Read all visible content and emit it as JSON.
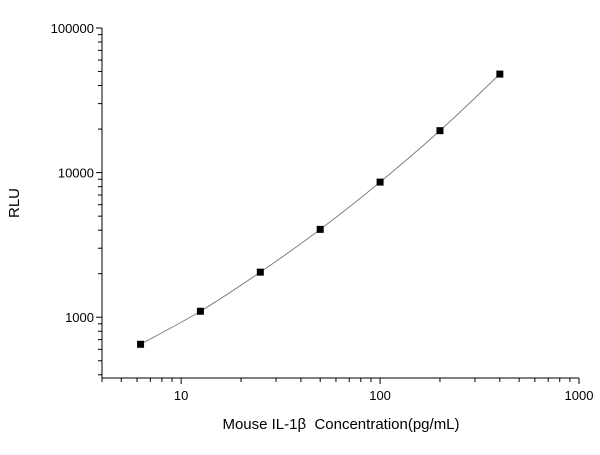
{
  "chart_data": {
    "type": "scatter",
    "title": "",
    "xlabel": "Mouse IL-1β  Concentration(pg/mL)",
    "ylabel": "RLU",
    "x_scale": "log",
    "y_scale": "log",
    "xlim": [
      4,
      1000
    ],
    "ylim": [
      380,
      100000
    ],
    "x_ticks": [
      10,
      100,
      1000
    ],
    "x_tick_labels": [
      "10",
      "100",
      "1000"
    ],
    "y_ticks": [
      1000,
      10000,
      100000
    ],
    "y_tick_labels": [
      "1000",
      "10000",
      "100000"
    ],
    "grid": false,
    "fit_curve": true,
    "series": [
      {
        "x": [
          6.25,
          12.5,
          25,
          50,
          100,
          200,
          400
        ],
        "y": [
          650,
          1100,
          2050,
          4050,
          8600,
          19500,
          48000
        ]
      }
    ],
    "colors": {
      "marker": "#000000",
      "curve": "#808080",
      "axis": "#000000"
    }
  }
}
